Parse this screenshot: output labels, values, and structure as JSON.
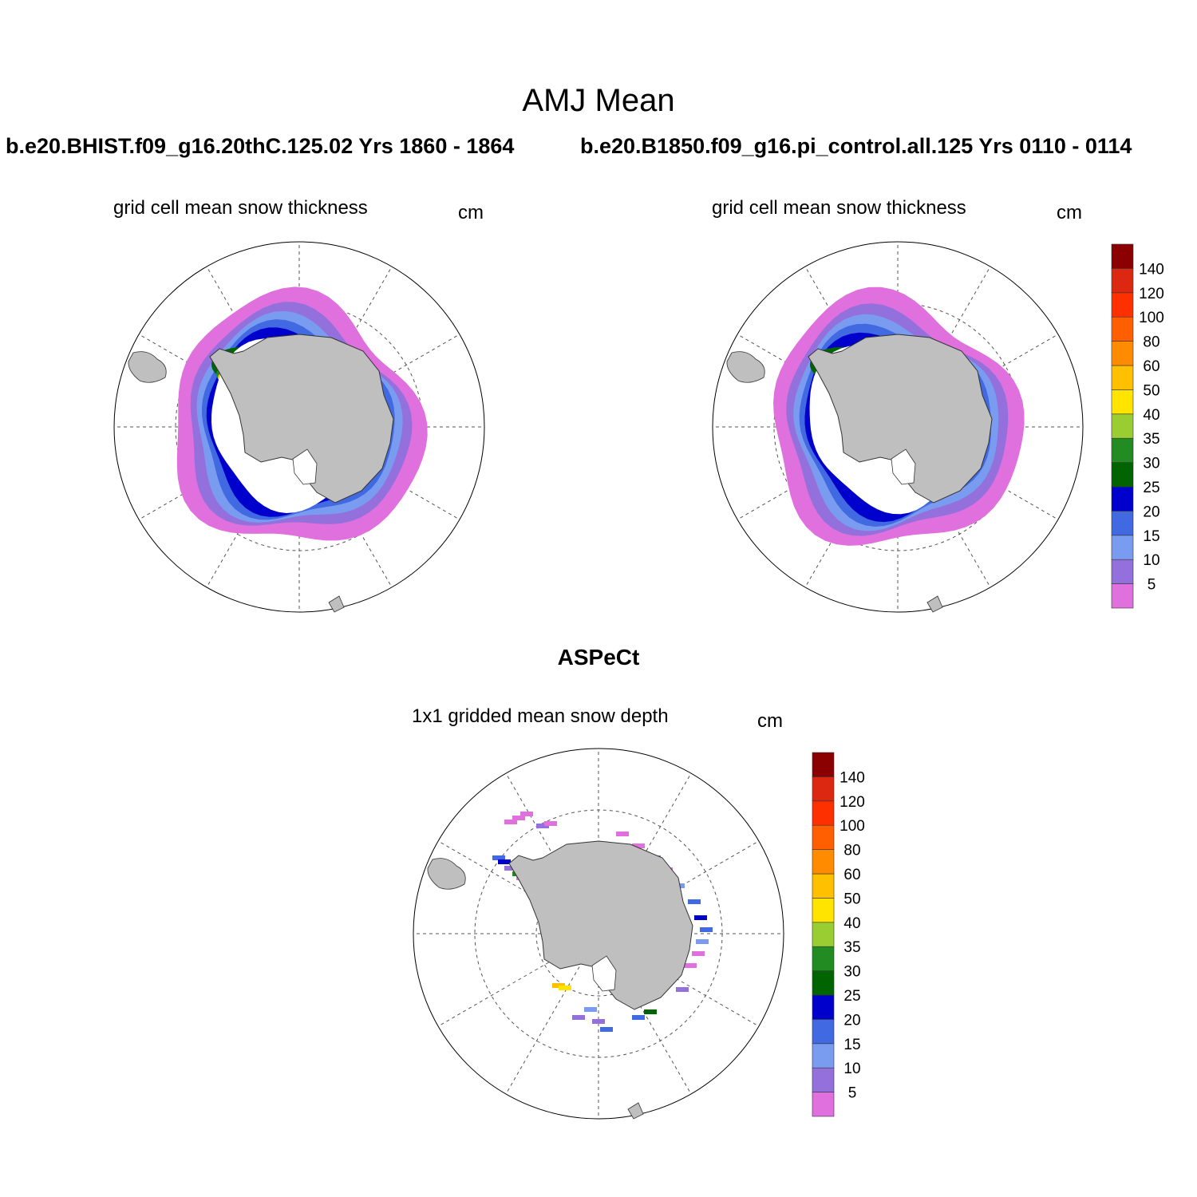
{
  "title": "AMJ Mean",
  "panels": [
    {
      "case_title": "b.e20.BHIST.f09_g16.20thC.125.02  Yrs 1860 - 1864",
      "subtitle": "grid cell mean snow thickness",
      "units": "cm"
    },
    {
      "case_title": "b.e20.B1850.f09_g16.pi_control.all.125  Yrs 0110 - 0114",
      "subtitle": "grid cell mean snow thickness",
      "units": "cm"
    },
    {
      "case_title": "ASPeCt",
      "subtitle": "1x1 gridded mean snow depth",
      "units": "cm"
    }
  ],
  "colorbar": {
    "levels": [
      "5",
      "10",
      "15",
      "20",
      "25",
      "30",
      "35",
      "40",
      "50",
      "60",
      "80",
      "100",
      "120",
      "140"
    ],
    "colors": [
      "#e070dd",
      "#9370db",
      "#7a9cf0",
      "#4169e1",
      "#0000cd",
      "#006400",
      "#228b22",
      "#9acd32",
      "#ffe400",
      "#ffc000",
      "#ff8c00",
      "#ff5f00",
      "#ff3000",
      "#dc2810",
      "#8b0000"
    ]
  },
  "map_colors": {
    "land": "#bfbfbf",
    "ocean": "#ffffff"
  }
}
